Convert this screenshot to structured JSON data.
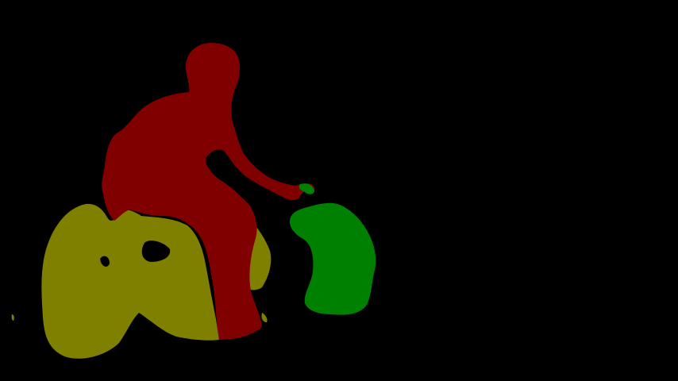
{
  "image": {
    "kind": "segmentation-mask",
    "background_color": "#000000"
  },
  "regions": [
    {
      "name": "person",
      "color": "#800000"
    },
    {
      "name": "motorbike",
      "color": "#808000"
    },
    {
      "name": "plant",
      "color": "#008000"
    }
  ]
}
